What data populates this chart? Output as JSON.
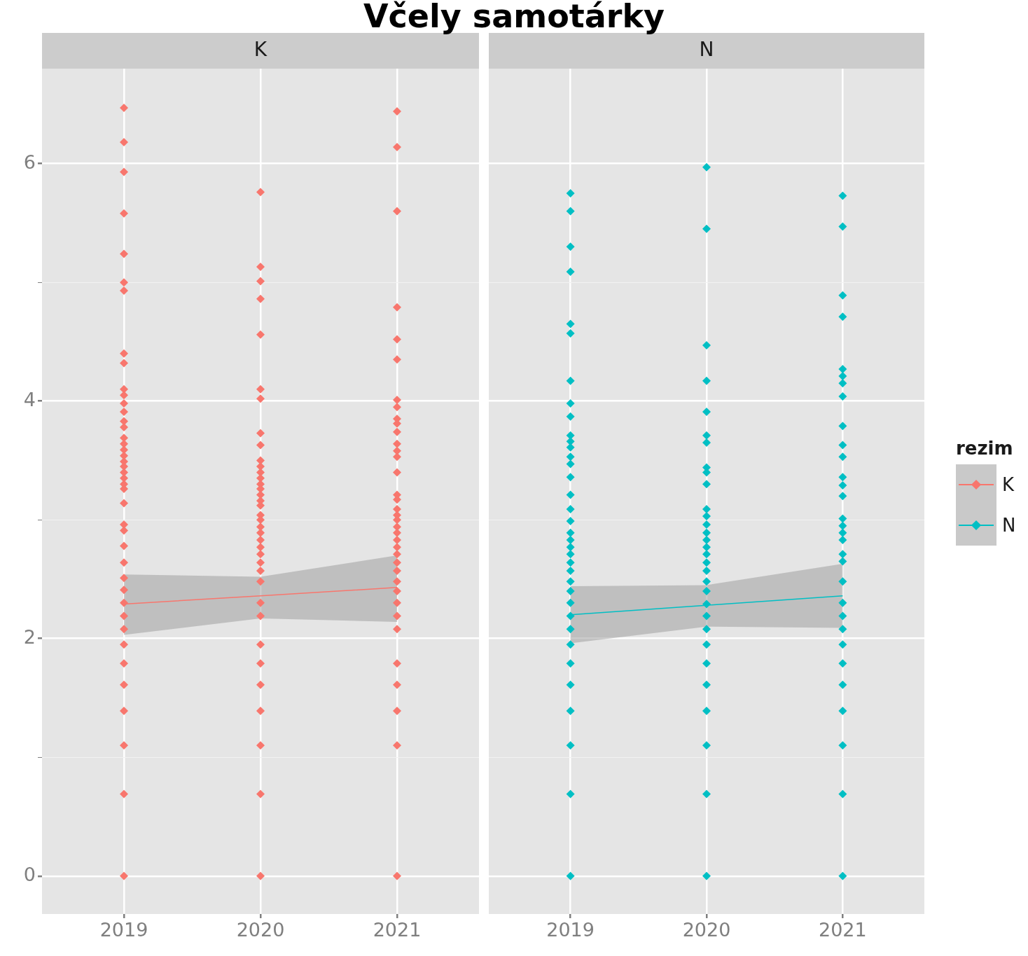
{
  "chart_data": [
    {
      "type": "scatter",
      "title": "Včely samotárky",
      "subtitle": "K",
      "xlim": [
        2018.4,
        2021.6
      ],
      "xticks": [
        2019,
        2020,
        2021
      ],
      "ylim": [
        -0.32,
        6.8
      ],
      "yticks": [
        0,
        {
          "value": 1,
          "label": null
        },
        2,
        {
          "value": 3,
          "label": null
        },
        4,
        {
          "value": 5,
          "label": null
        },
        6
      ],
      "grid": true,
      "marker": "diamond",
      "series": [
        {
          "name": "K",
          "color": "#f8766d",
          "x": [
            2019,
            2019,
            2019,
            2019,
            2019,
            2019,
            2019,
            2019,
            2019,
            2019,
            2019,
            2019,
            2019,
            2019,
            2019,
            2019,
            2019,
            2019,
            2019,
            2019,
            2019,
            2019,
            2019,
            2019,
            2019,
            2019,
            2019,
            2019,
            2019,
            2019,
            2019,
            2019,
            2019,
            2019,
            2019,
            2019,
            2019,
            2019,
            2019,
            2019,
            2019,
            2019,
            2020,
            2020,
            2020,
            2020,
            2020,
            2020,
            2020,
            2020,
            2020,
            2020,
            2020,
            2020,
            2020,
            2020,
            2020,
            2020,
            2020,
            2020,
            2020,
            2020,
            2020,
            2020,
            2020,
            2020,
            2020,
            2020,
            2020,
            2020,
            2020,
            2020,
            2020,
            2020,
            2020,
            2020,
            2020,
            2020,
            2020,
            2021,
            2021,
            2021,
            2021,
            2021,
            2021,
            2021,
            2021,
            2021,
            2021,
            2021,
            2021,
            2021,
            2021,
            2021,
            2021,
            2021,
            2021,
            2021,
            2021,
            2021,
            2021,
            2021,
            2021,
            2021,
            2021,
            2021,
            2021,
            2021,
            2021,
            2021,
            2021,
            2021,
            2021,
            2021,
            2021,
            2021
          ],
          "values": [
            6.47,
            6.18,
            5.93,
            5.58,
            5.24,
            5.0,
            4.93,
            4.4,
            4.32,
            4.1,
            4.05,
            3.98,
            3.91,
            3.83,
            3.78,
            3.69,
            3.64,
            3.59,
            3.54,
            3.49,
            3.45,
            3.4,
            3.35,
            3.3,
            3.26,
            3.14,
            2.96,
            2.91,
            2.78,
            2.64,
            2.51,
            2.41,
            2.3,
            2.19,
            2.08,
            1.95,
            1.79,
            1.61,
            1.39,
            1.1,
            0.69,
            0,
            5.76,
            5.13,
            5.01,
            4.86,
            4.56,
            4.1,
            4.02,
            3.73,
            3.63,
            3.5,
            3.45,
            3.4,
            3.35,
            3.3,
            3.26,
            3.21,
            3.16,
            3.12,
            3.04,
            3.0,
            2.94,
            2.89,
            2.83,
            2.77,
            2.71,
            2.64,
            2.57,
            2.48,
            2.3,
            2.19,
            1.95,
            1.79,
            1.61,
            1.39,
            1.1,
            0.69,
            0,
            6.44,
            6.14,
            5.6,
            4.79,
            4.52,
            4.35,
            4.01,
            3.95,
            3.85,
            3.81,
            3.74,
            3.64,
            3.58,
            3.53,
            3.4,
            3.21,
            3.17,
            3.09,
            3.04,
            3.0,
            2.94,
            2.89,
            2.83,
            2.77,
            2.71,
            2.64,
            2.57,
            2.48,
            2.4,
            2.3,
            2.19,
            2.08,
            1.79,
            1.61,
            1.39,
            1.1,
            0
          ]
        },
        {
          "type": "line",
          "color": "#f8766d",
          "marker": "none",
          "x": [
            2019,
            2020,
            2021
          ],
          "values": [
            2.29,
            2.36,
            2.43
          ],
          "lower": [
            2.03,
            2.17,
            2.14
          ],
          "upper": [
            2.54,
            2.52,
            2.7
          ]
        }
      ]
    },
    {
      "type": "scatter",
      "subtitle": "N",
      "xlim": [
        2018.4,
        2021.6
      ],
      "xticks": [
        2019,
        2020,
        2021
      ],
      "ylim": [
        -0.32,
        6.8
      ],
      "yticks": [
        0,
        {
          "value": 1,
          "label": null
        },
        2,
        {
          "value": 3,
          "label": null
        },
        4,
        {
          "value": 5,
          "label": null
        },
        6
      ],
      "tick_labels": "x",
      "grid": true,
      "marker": "diamond",
      "legend": "right",
      "legend_title": "rezim",
      "series": [
        {
          "name": "N",
          "color": "#00bfc4",
          "x": [
            2019,
            2019,
            2019,
            2019,
            2019,
            2019,
            2019,
            2019,
            2019,
            2019,
            2019,
            2019,
            2019,
            2019,
            2019,
            2019,
            2019,
            2019,
            2019,
            2019,
            2019,
            2019,
            2019,
            2019,
            2019,
            2019,
            2019,
            2019,
            2019,
            2019,
            2019,
            2019,
            2019,
            2019,
            2019,
            2019,
            2020,
            2020,
            2020,
            2020,
            2020,
            2020,
            2020,
            2020,
            2020,
            2020,
            2020,
            2020,
            2020,
            2020,
            2020,
            2020,
            2020,
            2020,
            2020,
            2020,
            2020,
            2020,
            2020,
            2020,
            2020,
            2020,
            2020,
            2020,
            2020,
            2020,
            2020,
            2021,
            2021,
            2021,
            2021,
            2021,
            2021,
            2021,
            2021,
            2021,
            2021,
            2021,
            2021,
            2021,
            2021,
            2021,
            2021,
            2021,
            2021,
            2021,
            2021,
            2021,
            2021,
            2021,
            2021,
            2021,
            2021,
            2021,
            2021,
            2021,
            2021,
            2021
          ],
          "values": [
            5.75,
            5.6,
            5.3,
            5.09,
            4.65,
            4.57,
            4.17,
            3.98,
            3.87,
            3.71,
            3.66,
            3.61,
            3.53,
            3.47,
            3.36,
            3.21,
            3.09,
            2.99,
            2.89,
            2.83,
            2.77,
            2.71,
            2.64,
            2.57,
            2.48,
            2.4,
            2.3,
            2.19,
            2.08,
            1.95,
            1.79,
            1.61,
            1.39,
            1.1,
            0.69,
            0,
            5.97,
            5.45,
            4.47,
            4.17,
            3.91,
            3.71,
            3.65,
            3.44,
            3.4,
            3.3,
            3.09,
            3.03,
            2.96,
            2.89,
            2.83,
            2.77,
            2.71,
            2.64,
            2.57,
            2.48,
            2.4,
            2.29,
            2.19,
            2.08,
            1.95,
            1.79,
            1.61,
            1.39,
            1.1,
            0.69,
            0,
            5.73,
            5.47,
            4.89,
            4.71,
            4.27,
            4.21,
            4.15,
            4.04,
            3.79,
            3.63,
            3.53,
            3.36,
            3.29,
            3.2,
            3.01,
            2.95,
            2.89,
            2.83,
            2.71,
            2.65,
            2.48,
            2.3,
            2.19,
            2.08,
            1.95,
            1.79,
            1.61,
            1.39,
            1.1,
            0.69,
            0
          ]
        },
        {
          "type": "line",
          "color": "#00bfc4",
          "marker": "none",
          "x": [
            2019,
            2020,
            2021
          ],
          "values": [
            2.2,
            2.28,
            2.36
          ],
          "lower": [
            1.96,
            2.1,
            2.09
          ],
          "upper": [
            2.44,
            2.45,
            2.63
          ]
        }
      ]
    }
  ]
}
